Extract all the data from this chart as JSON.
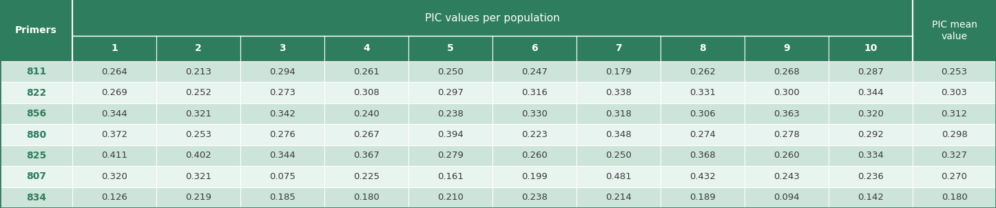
{
  "primers": [
    "811",
    "822",
    "856",
    "880",
    "825",
    "807",
    "834"
  ],
  "populations": [
    "1",
    "2",
    "3",
    "4",
    "5",
    "6",
    "7",
    "8",
    "9",
    "10"
  ],
  "pic_values": [
    [
      0.264,
      0.213,
      0.294,
      0.261,
      0.25,
      0.247,
      0.179,
      0.262,
      0.268,
      0.287
    ],
    [
      0.269,
      0.252,
      0.273,
      0.308,
      0.297,
      0.316,
      0.338,
      0.331,
      0.3,
      0.344
    ],
    [
      0.344,
      0.321,
      0.342,
      0.24,
      0.238,
      0.33,
      0.318,
      0.306,
      0.363,
      0.32
    ],
    [
      0.372,
      0.253,
      0.276,
      0.267,
      0.394,
      0.223,
      0.348,
      0.274,
      0.278,
      0.292
    ],
    [
      0.411,
      0.402,
      0.344,
      0.367,
      0.279,
      0.26,
      0.25,
      0.368,
      0.26,
      0.334
    ],
    [
      0.32,
      0.321,
      0.075,
      0.225,
      0.161,
      0.199,
      0.481,
      0.432,
      0.243,
      0.236
    ],
    [
      0.126,
      0.219,
      0.185,
      0.18,
      0.21,
      0.238,
      0.214,
      0.189,
      0.094,
      0.142
    ]
  ],
  "pic_mean": [
    0.253,
    0.303,
    0.312,
    0.298,
    0.327,
    0.27,
    0.18
  ],
  "header_bg": "#2e7d5e",
  "row_bg_odd": "#cce4da",
  "row_bg_even": "#e8f4ef",
  "header_text_color": "#ffffff",
  "data_text_color": "#3a3a3a",
  "primer_text_color": "#2e7d5e",
  "border_color": "#2e7d5e",
  "main_header": "PIC values per population",
  "col1_header": "Primers",
  "last_col_header": "PIC mean\nvalue"
}
